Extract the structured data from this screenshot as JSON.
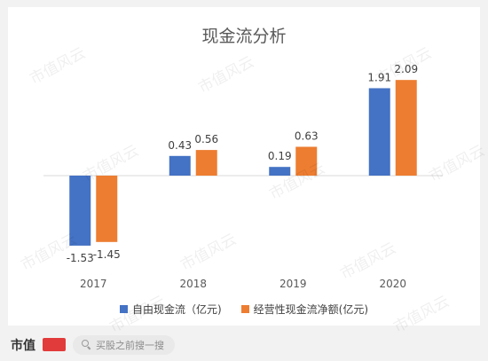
{
  "chart_data": {
    "type": "bar",
    "title": "现金流分析",
    "categories": [
      "2017",
      "2018",
      "2019",
      "2020"
    ],
    "series": [
      {
        "name": "自由现金流（亿元)",
        "color": "#4472c4",
        "values": [
          -1.53,
          0.43,
          0.19,
          1.91
        ]
      },
      {
        "name": "经营性现金流净额(亿元)",
        "color": "#ed7d31",
        "values": [
          -1.45,
          0.56,
          0.63,
          2.09
        ]
      }
    ],
    "ylim": [
      -1.53,
      2.09
    ],
    "grid": false,
    "legend": "bottom"
  },
  "watermark": {
    "text": "市值风云"
  },
  "footer": {
    "brand": "市值",
    "search_placeholder": "买股之前搜一搜"
  }
}
